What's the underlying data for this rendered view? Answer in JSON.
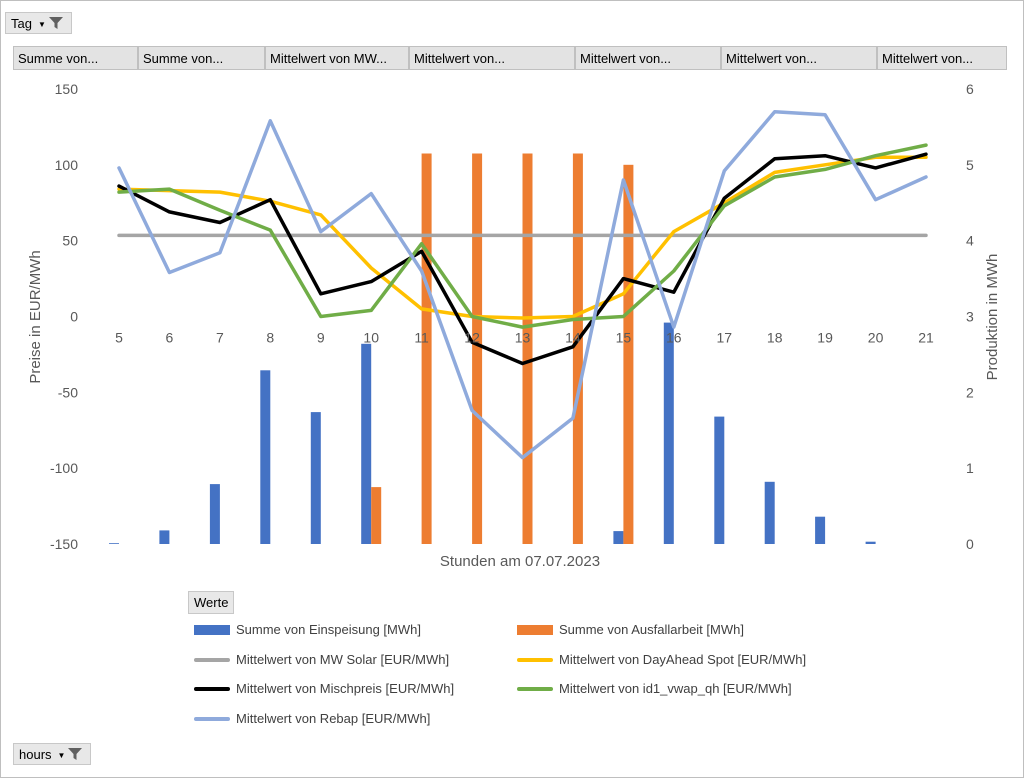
{
  "filters": {
    "tag_label": "Tag",
    "hours_label": "hours"
  },
  "field_headers": [
    "Summe von...",
    "Summe von...",
    "Mittelwert von MW...",
    "Mittelwert von...",
    "Mittelwert von...",
    "Mittelwert von...",
    "Mittelwert von..."
  ],
  "legend": {
    "title": "Werte",
    "items": [
      "Summe von Einspeisung [MWh]",
      "Summe von Ausfallarbeit [MWh]",
      "Mittelwert von MW Solar [EUR/MWh]",
      "Mittelwert von DayAhead Spot [EUR/MWh]",
      "Mittelwert von Mischpreis [EUR/MWh]",
      "Mittelwert von id1_vwap_qh [EUR/MWh]",
      "Mittelwert von Rebap [EUR/MWh]"
    ]
  },
  "chart_data": {
    "type": "combo",
    "xlabel": "Stunden am 07.07.2023",
    "ylabel_left": "Preise in EUR/MWh",
    "ylabel_right": "Produktion in MWh",
    "categories": [
      "5",
      "6",
      "7",
      "8",
      "9",
      "10",
      "11",
      "12",
      "13",
      "14",
      "15",
      "16",
      "17",
      "18",
      "19",
      "20",
      "21"
    ],
    "ylim_left": [
      -150,
      150
    ],
    "yticks_left": [
      "150",
      "100",
      "50",
      "0",
      "-50",
      "-100",
      "-150"
    ],
    "ylim_right": [
      0,
      6
    ],
    "yticks_right": [
      "6",
      "5",
      "4",
      "3",
      "2",
      "1",
      "0"
    ],
    "bar_series": [
      {
        "name": "Summe von Einspeisung [MWh]",
        "color": "#4472c4",
        "axis": "right",
        "values": [
          0.01,
          0.18,
          0.79,
          2.29,
          1.74,
          2.64,
          0,
          0,
          0,
          0,
          0.17,
          2.92,
          1.68,
          0.82,
          0.36,
          0.03,
          0
        ]
      },
      {
        "name": "Summe von Ausfallarbeit [MWh]",
        "color": "#ed7d31",
        "axis": "right",
        "values": [
          0,
          0,
          0,
          0,
          0,
          0.75,
          5.15,
          5.15,
          5.15,
          5.15,
          5.0,
          0,
          0,
          0,
          0,
          0,
          0
        ]
      }
    ],
    "line_series": [
      {
        "name": "Mittelwert von MW Solar [EUR/MWh]",
        "color": "#a5a5a5",
        "axis": "left",
        "values": [
          53.5,
          53.5,
          53.5,
          53.5,
          53.5,
          53.5,
          53.5,
          53.5,
          53.5,
          53.5,
          53.5,
          53.5,
          53.5,
          53.5,
          53.5,
          53.5,
          53.5
        ]
      },
      {
        "name": "Mittelwert von DayAhead Spot [EUR/MWh]",
        "color": "#ffc000",
        "axis": "left",
        "values": [
          84,
          83,
          82,
          76,
          67,
          32,
          5,
          0,
          -1,
          0,
          15,
          56,
          75,
          95,
          100,
          105,
          105
        ]
      },
      {
        "name": "Mittelwert von Mischpreis [EUR/MWh]",
        "color": "#000000",
        "axis": "left",
        "values": [
          86,
          69,
          62,
          77,
          15,
          23,
          43,
          -17,
          -31,
          -20,
          25,
          16,
          78,
          104,
          106,
          98,
          107
        ]
      },
      {
        "name": "Mittelwert von id1_vwap_qh [EUR/MWh]",
        "color": "#70ad47",
        "axis": "left",
        "values": [
          82,
          84,
          70,
          57,
          0,
          4,
          48,
          0,
          -7,
          -2,
          0,
          30,
          73,
          92,
          97,
          106,
          113
        ]
      },
      {
        "name": "Mittelwert von Rebap [EUR/MWh]",
        "color": "#8faadc",
        "axis": "left",
        "values": [
          98,
          29,
          42,
          129,
          56,
          81,
          30,
          -62,
          -93,
          -67,
          90,
          -7,
          96,
          135,
          133,
          77,
          92
        ]
      }
    ]
  }
}
